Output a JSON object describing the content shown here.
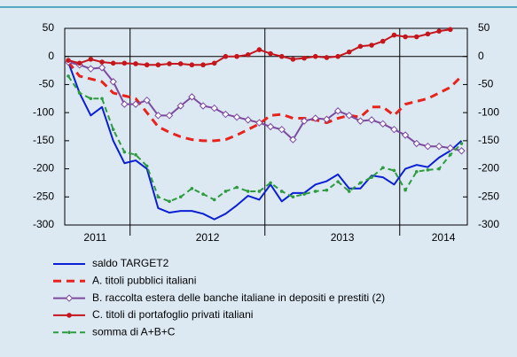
{
  "chart_data": {
    "type": "line",
    "categories": [
      null,
      null,
      "2011",
      null,
      null,
      null,
      null,
      null,
      null,
      null,
      null,
      null,
      "2012",
      null,
      null,
      null,
      null,
      null,
      null,
      null,
      null,
      null,
      null,
      null,
      "2013",
      null,
      null,
      null,
      null,
      null,
      null,
      null,
      null,
      "2014",
      null,
      null
    ],
    "ylim": [
      -300,
      50
    ],
    "yticks": [
      -300,
      -250,
      -200,
      -150,
      -100,
      -50,
      0,
      50
    ],
    "y2lim": [
      -300,
      50
    ],
    "y2ticks": [
      -300,
      -250,
      -200,
      -150,
      -100,
      -50,
      0,
      50
    ],
    "series": [
      {
        "name": "saldo TARGET2",
        "color": "#0a1fd6",
        "style": "solid",
        "marker": "none",
        "values": [
          -10,
          -65,
          -105,
          -90,
          -150,
          -190,
          -185,
          -200,
          -270,
          -278,
          -275,
          -275,
          -280,
          -290,
          -280,
          -265,
          -248,
          -255,
          -228,
          -258,
          -243,
          -243,
          -228,
          -222,
          -210,
          -235,
          -235,
          -212,
          -215,
          -228,
          -200,
          -193,
          -197,
          -180,
          -168,
          -150
        ]
      },
      {
        "name": "A. titoli pubblici italiani",
        "color": "#e8231c",
        "style": "dashed",
        "marker": "none",
        "values": [
          -10,
          -35,
          -40,
          -45,
          -65,
          -70,
          -75,
          -100,
          -125,
          -135,
          -143,
          -148,
          -150,
          -150,
          -148,
          -140,
          -130,
          -120,
          -105,
          -103,
          -110,
          -110,
          -113,
          -118,
          -110,
          -105,
          -108,
          -90,
          -90,
          -105,
          -85,
          -80,
          -75,
          -65,
          -55,
          -35
        ]
      },
      {
        "name": "B. raccolta estera delle banche italiane in depositi e prestiti (2)",
        "color": "#7d4aa0",
        "style": "solid",
        "marker": "diamond",
        "values": [
          -10,
          -15,
          -22,
          -20,
          -45,
          -85,
          -85,
          -78,
          -105,
          -105,
          -88,
          -72,
          -88,
          -92,
          -103,
          -108,
          -113,
          -118,
          -125,
          -130,
          -148,
          -115,
          -110,
          -112,
          -97,
          -105,
          -115,
          -113,
          -120,
          -130,
          -140,
          -155,
          -160,
          -160,
          -163,
          -168
        ]
      },
      {
        "name": "C. titoli di portafoglio privati italiani",
        "color": "#c4161c",
        "style": "solid",
        "marker": "circle",
        "values": [
          -7,
          -12,
          -5,
          -10,
          -12,
          -12,
          -13,
          -15,
          -15,
          -13,
          -13,
          -15,
          -15,
          -12,
          0,
          0,
          3,
          12,
          5,
          0,
          -5,
          -3,
          0,
          -2,
          0,
          8,
          18,
          20,
          27,
          38,
          35,
          35,
          40,
          45,
          48,
          null
        ]
      },
      {
        "name": "somma di A+B+C",
        "color": "#2e9b3e",
        "style": "dashed",
        "marker": "dot",
        "values": [
          -35,
          -65,
          -75,
          -75,
          -130,
          -170,
          -175,
          -195,
          -250,
          -258,
          -250,
          -235,
          -245,
          -255,
          -240,
          -233,
          -240,
          -240,
          -225,
          -240,
          -250,
          -245,
          -240,
          -238,
          -223,
          -240,
          -225,
          -215,
          -198,
          -203,
          -238,
          -205,
          -202,
          -200,
          -175,
          -155
        ]
      }
    ]
  }
}
